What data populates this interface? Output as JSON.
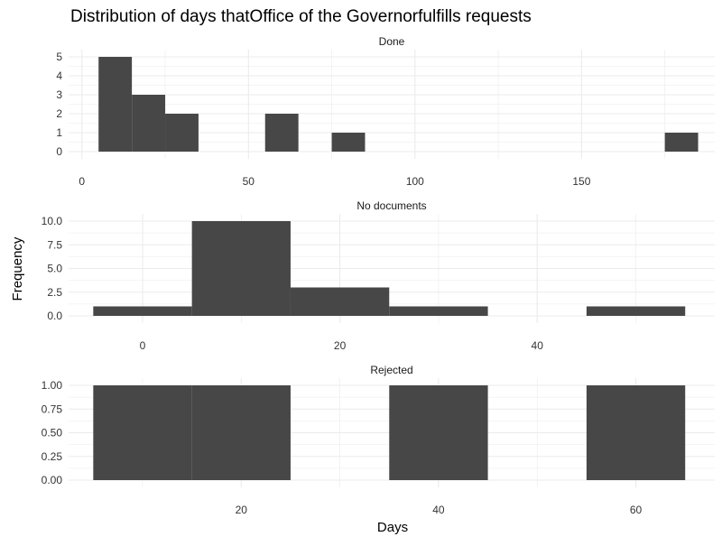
{
  "chart_data": {
    "type": "bar",
    "title": "Distribution of days thatOffice of the Governorfulfills requests",
    "xlabel": "Days",
    "ylabel": "Frequency",
    "grid": true,
    "bar_color": "#474747",
    "grid_color": "#ebebeb",
    "panels": [
      {
        "name": "Done",
        "xlim": [
          -4,
          190
        ],
        "ylim": [
          0,
          5
        ],
        "x_ticks": [
          0,
          50,
          100,
          150
        ],
        "y_ticks": [
          0,
          1,
          2,
          3,
          4,
          5
        ],
        "bins": [
          {
            "x0": 5,
            "x1": 15,
            "count": 5
          },
          {
            "x0": 15,
            "x1": 25,
            "count": 3
          },
          {
            "x0": 25,
            "x1": 35,
            "count": 2
          },
          {
            "x0": 55,
            "x1": 65,
            "count": 2
          },
          {
            "x0": 75,
            "x1": 85,
            "count": 1
          },
          {
            "x0": 175,
            "x1": 185,
            "count": 1
          }
        ]
      },
      {
        "name": "No documents",
        "xlim": [
          -7.5,
          58
        ],
        "ylim": [
          0,
          10
        ],
        "x_ticks": [
          0,
          20,
          40
        ],
        "y_ticks": [
          0,
          2.5,
          5,
          7.5,
          10
        ],
        "y_labels": [
          "0.0",
          "2.5",
          "5.0",
          "7.5",
          "10.0"
        ],
        "bins": [
          {
            "x0": -5,
            "x1": 5,
            "count": 1
          },
          {
            "x0": 5,
            "x1": 15,
            "count": 10
          },
          {
            "x0": 15,
            "x1": 25,
            "count": 3
          },
          {
            "x0": 25,
            "x1": 35,
            "count": 1
          },
          {
            "x0": 45,
            "x1": 55,
            "count": 1
          }
        ]
      },
      {
        "name": "Rejected",
        "xlim": [
          2.5,
          68
        ],
        "ylim": [
          0,
          1
        ],
        "x_ticks": [
          20,
          40,
          60
        ],
        "y_ticks": [
          0,
          0.25,
          0.5,
          0.75,
          1
        ],
        "y_labels": [
          "0.00",
          "0.25",
          "0.50",
          "0.75",
          "1.00"
        ],
        "bins": [
          {
            "x0": 5,
            "x1": 15,
            "count": 1
          },
          {
            "x0": 15,
            "x1": 25,
            "count": 1
          },
          {
            "x0": 35,
            "x1": 45,
            "count": 1
          },
          {
            "x0": 55,
            "x1": 65,
            "count": 1
          }
        ]
      }
    ]
  }
}
